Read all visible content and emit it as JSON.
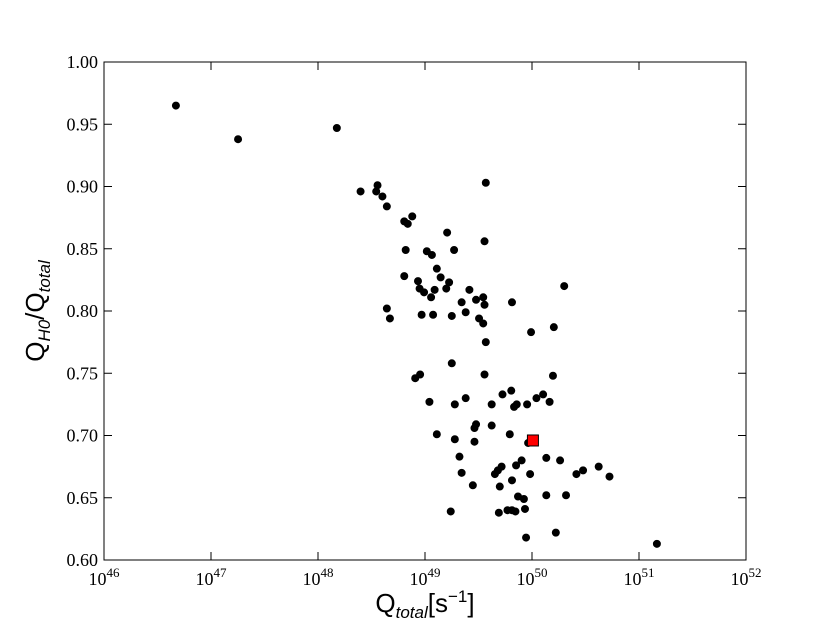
{
  "chart_data": {
    "type": "scatter",
    "xlabel": [
      "Q",
      "total",
      "[s",
      "−1",
      "]"
    ],
    "ylabel": [
      "Q",
      "H0",
      "/Q",
      "total"
    ],
    "xscale": "log",
    "xlim": [
      1e+46,
      1e+52
    ],
    "ylim": [
      0.6,
      1.0
    ],
    "xticks": [
      {
        "value": 1e+46,
        "label": "10",
        "exponent": "46"
      },
      {
        "value": 1e+47,
        "label": "10",
        "exponent": "47"
      },
      {
        "value": 1e+48,
        "label": "10",
        "exponent": "48"
      },
      {
        "value": 1e+49,
        "label": "10",
        "exponent": "49"
      },
      {
        "value": 1e+50,
        "label": "10",
        "exponent": "50"
      },
      {
        "value": 1e+51,
        "label": "10",
        "exponent": "51"
      },
      {
        "value": 1e+52,
        "label": "10",
        "exponent": "52"
      }
    ],
    "yticks": [
      {
        "value": 0.6,
        "label": "0.60"
      },
      {
        "value": 0.65,
        "label": "0.65"
      },
      {
        "value": 0.7,
        "label": "0.70"
      },
      {
        "value": 0.75,
        "label": "0.75"
      },
      {
        "value": 0.8,
        "label": "0.80"
      },
      {
        "value": 0.85,
        "label": "0.85"
      },
      {
        "value": 0.9,
        "label": "0.90"
      },
      {
        "value": 0.95,
        "label": "0.95"
      },
      {
        "value": 1.0,
        "label": "1.00"
      }
    ],
    "grid": false,
    "series": [
      {
        "marker": "circle",
        "color": "#000000",
        "x": [
          4.7e+46,
          1.79e+47,
          1.5e+48,
          2.5e+48,
          3.6e+48,
          3.5e+48,
          4e+48,
          4.4e+48,
          6.4e+48,
          6.9e+48,
          7.6e+48,
          6.6e+48,
          6.4e+48,
          4.4e+48,
          4.7e+48,
          8.1e+48,
          9e+48,
          1.04e+49,
          1.16e+49,
          8.6e+48,
          8.9e+48,
          9.8e+48,
          9.3e+48,
          1.14e+49,
          1.19e+49,
          1.23e+49,
          1.29e+49,
          1.4e+49,
          1.61e+49,
          1.68e+49,
          1.58e+49,
          1.78e+49,
          1.87e+49,
          1.78e+49,
          1.1e+49,
          1.29e+49,
          1.74e+49,
          1.9e+49,
          1.9e+49,
          2.1e+49,
          2.2e+49,
          2.2e+49,
          2.4e+49,
          2.4e+49,
          2.6e+49,
          2.9e+49,
          3e+49,
          2.8e+49,
          2.9e+49,
          3e+49,
          3.2e+49,
          3.5e+49,
          3.5e+49,
          3.6e+49,
          3.7e+49,
          3.6e+49,
          3.7e+49,
          3.6e+49,
          4.2e+49,
          4.2e+49,
          4.5e+49,
          4.8e+49,
          4.9e+49,
          5e+49,
          5.2e+49,
          5.3e+49,
          5.9e+49,
          6.2e+49,
          6.4e+49,
          6.5e+49,
          6.5e+49,
          6.5e+49,
          6.8e+49,
          7.1e+49,
          7e+49,
          7.2e+49,
          7.4e+49,
          8e+49,
          8.4e+49,
          8.6e+49,
          9e+49,
          8.8e+49,
          9.2e+49,
          9.6e+49,
          9.8e+49,
          1.1e+50,
          1.27e+50,
          1.36e+50,
          1.36e+50,
          1.46e+50,
          1.57e+50,
          1.6e+50,
          1.67e+50,
          1.83e+50,
          2e+50,
          2.08e+50,
          2.6e+50,
          3e+50,
          4.2e+50,
          5.3e+50,
          1.47e+51
        ],
        "values": [
          0.965,
          0.938,
          0.947,
          0.896,
          0.901,
          0.896,
          0.892,
          0.884,
          0.872,
          0.87,
          0.876,
          0.849,
          0.828,
          0.802,
          0.794,
          0.746,
          0.749,
          0.848,
          0.845,
          0.824,
          0.818,
          0.815,
          0.797,
          0.811,
          0.797,
          0.817,
          0.834,
          0.827,
          0.863,
          0.823,
          0.818,
          0.796,
          0.849,
          0.758,
          0.727,
          0.701,
          0.639,
          0.725,
          0.697,
          0.683,
          0.807,
          0.67,
          0.799,
          0.73,
          0.817,
          0.706,
          0.709,
          0.66,
          0.695,
          0.809,
          0.794,
          0.811,
          0.79,
          0.805,
          0.903,
          0.856,
          0.775,
          0.749,
          0.725,
          0.708,
          0.669,
          0.672,
          0.638,
          0.659,
          0.675,
          0.733,
          0.64,
          0.701,
          0.736,
          0.64,
          0.807,
          0.664,
          0.723,
          0.676,
          0.639,
          0.725,
          0.651,
          0.68,
          0.649,
          0.641,
          0.725,
          0.618,
          0.694,
          0.669,
          0.783,
          0.73,
          0.733,
          0.682,
          0.652,
          0.727,
          0.748,
          0.787,
          0.622,
          0.68,
          0.82,
          0.652,
          0.669,
          0.672,
          0.675,
          0.667,
          0.613
        ]
      },
      {
        "marker": "square",
        "color": "#ff0000",
        "x": [
          1.02e+50
        ],
        "values": [
          0.696
        ]
      }
    ]
  }
}
